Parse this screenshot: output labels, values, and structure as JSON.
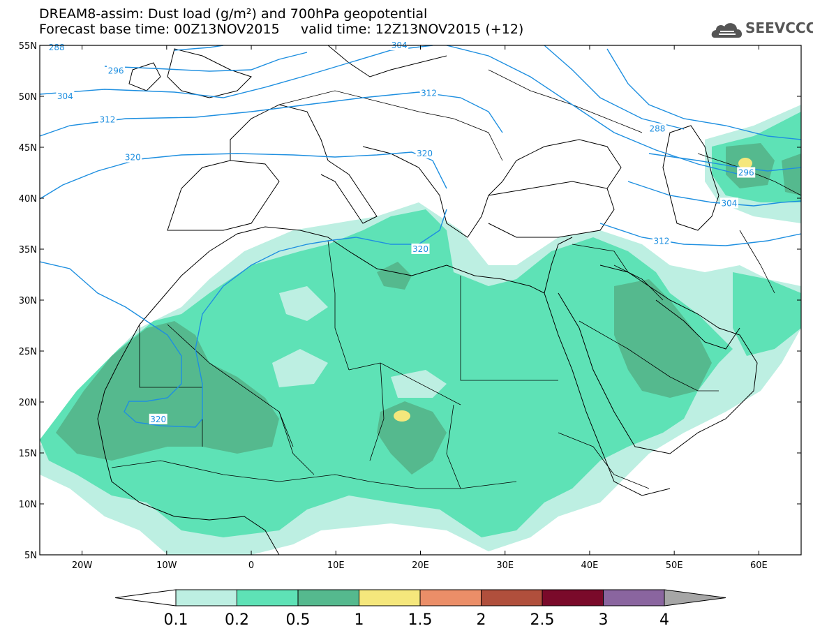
{
  "title": {
    "line1": "DREAM8-assim: Dust load (g/m²) and 700hPa geopotential",
    "line2": "Forecast base time: 00Z13NOV2015     valid time: 12Z13NOV2015 (+12)"
  },
  "logo": {
    "text": "SEEVCCC",
    "icon": "cloud-icon"
  },
  "map": {
    "lon_range": [
      -25,
      65
    ],
    "lat_range": [
      5,
      55
    ],
    "lat_ticks": [
      "5N",
      "10N",
      "15N",
      "20N",
      "25N",
      "30N",
      "35N",
      "40N",
      "45N",
      "50N",
      "55N"
    ],
    "lat_values": [
      5,
      10,
      15,
      20,
      25,
      30,
      35,
      40,
      45,
      50,
      55
    ],
    "lon_ticks": [
      "20W",
      "10W",
      "0",
      "10E",
      "20E",
      "30E",
      "40E",
      "50E",
      "60E"
    ],
    "lon_values": [
      -20,
      -10,
      0,
      10,
      20,
      30,
      40,
      50,
      60
    ],
    "contour_labels": [
      {
        "text": "288",
        "lon": -23,
        "lat": 54.8
      },
      {
        "text": "296",
        "lon": -16,
        "lat": 52.5
      },
      {
        "text": "304",
        "lon": -22,
        "lat": 50
      },
      {
        "text": "312",
        "lon": -17,
        "lat": 47.7
      },
      {
        "text": "320",
        "lon": -14,
        "lat": 44
      },
      {
        "text": "312",
        "lon": 21,
        "lat": 50.3
      },
      {
        "text": "320",
        "lon": 20.5,
        "lat": 44.4
      },
      {
        "text": "288",
        "lon": 48,
        "lat": 46.8
      },
      {
        "text": "296",
        "lon": 58.5,
        "lat": 42.5
      },
      {
        "text": "304",
        "lon": 56.5,
        "lat": 39.5
      },
      {
        "text": "312",
        "lon": 48.5,
        "lat": 35.8
      },
      {
        "text": "320",
        "lon": 20,
        "lat": 35
      },
      {
        "text": "320",
        "lon": -11,
        "lat": 18.3
      },
      {
        "text": "304",
        "lon": 17.5,
        "lat": 55
      }
    ]
  },
  "colorbar": {
    "ticks": [
      "0.1",
      "0.2",
      "0.5",
      "1",
      "1.5",
      "2",
      "2.5",
      "3",
      "4"
    ],
    "colors": [
      "#ffffff",
      "#bdefe2",
      "#5ee2b6",
      "#55b98e",
      "#f5e77c",
      "#eb8e68",
      "#b04f3c",
      "#7a0a2a",
      "#8a659f",
      "#a6a6a6"
    ]
  },
  "colors": {
    "contour": "#1e8fe0",
    "dust_low": "#bdefe2",
    "dust_mid": "#5ee2b6",
    "dust_high": "#55b98e",
    "dust_peak": "#f5e77c"
  }
}
